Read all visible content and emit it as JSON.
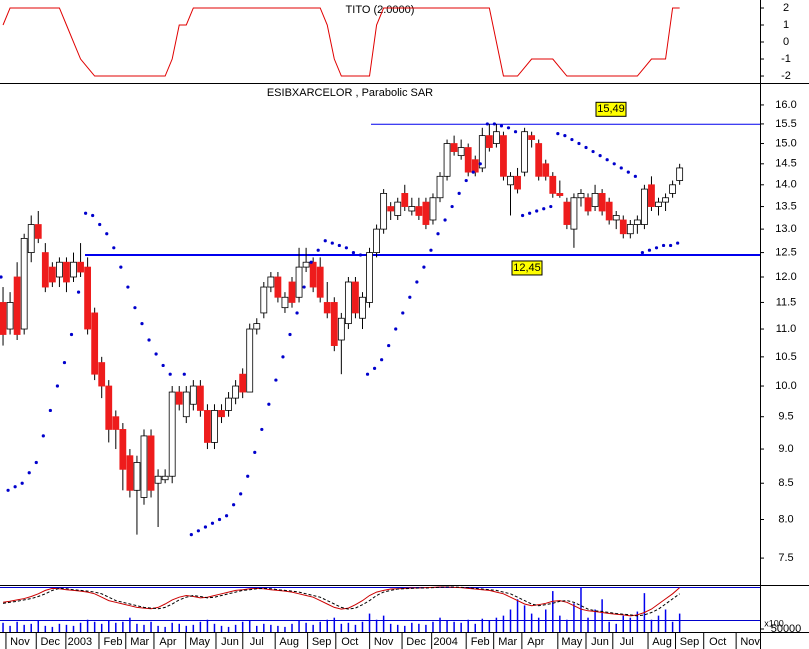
{
  "chart_data": [
    {
      "type": "step-line",
      "title": "TITO (2.0000)",
      "color": "#e00000",
      "values": [
        1,
        2,
        2,
        2,
        2,
        2,
        2,
        2,
        2,
        1,
        0,
        -1,
        -1.5,
        -2,
        -2,
        -2,
        -2,
        -2,
        -2,
        -2,
        -2,
        -2,
        -2,
        -2,
        -1,
        1,
        1,
        2,
        2,
        2,
        2,
        2,
        2,
        2,
        2,
        2,
        2,
        2,
        2,
        2,
        2,
        2,
        2,
        2,
        2,
        2,
        1,
        -1,
        -2,
        -2,
        -2,
        -2,
        -2,
        1,
        2,
        2,
        2,
        2,
        2,
        2,
        2,
        2,
        2,
        2,
        2,
        2,
        2,
        2,
        2,
        2,
        0,
        -2,
        -2,
        -2,
        -1.5,
        -1,
        -1,
        -1,
        -1,
        -1.5,
        -2,
        -2,
        -2,
        -2,
        -2,
        -2,
        -2,
        -2,
        -2,
        -2,
        -2,
        -1.5,
        -1,
        -1,
        -1,
        2,
        2
      ],
      "xlim": [
        -0.43,
        107.4
      ],
      "ylim": [
        -2.41,
        2.47
      ],
      "yticks": [
        2,
        1,
        0,
        -1,
        -2
      ]
    },
    {
      "type": "candlestick",
      "title": "ESIBXARCELOR , Parabolic SAR",
      "log_scale": true,
      "up_color": "#ffffff",
      "down_color": "#ee1c1c",
      "sar_color": "#0000cc",
      "level_color": "#0000ee",
      "ohlc": [
        [
          11.5,
          11.8,
          10.7,
          10.9
        ],
        [
          11.0,
          11.7,
          10.9,
          11.5
        ],
        [
          12.0,
          12.3,
          10.8,
          10.9
        ],
        [
          11.0,
          12.9,
          10.9,
          12.8
        ],
        [
          12.5,
          13.3,
          12.3,
          13.1
        ],
        [
          13.1,
          13.4,
          12.7,
          12.8
        ],
        [
          12.5,
          12.7,
          11.7,
          11.8
        ],
        [
          12.2,
          12.3,
          11.8,
          11.9
        ],
        [
          12.0,
          12.4,
          11.8,
          12.3
        ],
        [
          12.3,
          12.4,
          11.7,
          11.9
        ],
        [
          12.0,
          12.5,
          11.9,
          12.3
        ],
        [
          12.3,
          12.7,
          12.0,
          12.1
        ],
        [
          12.2,
          12.4,
          10.9,
          11.0
        ],
        [
          11.3,
          11.4,
          10.1,
          10.2
        ],
        [
          10.4,
          10.5,
          9.8,
          10.0
        ],
        [
          10.0,
          10.1,
          9.1,
          9.3
        ],
        [
          9.5,
          9.6,
          9.0,
          9.3
        ],
        [
          9.3,
          9.4,
          8.4,
          8.7
        ],
        [
          8.9,
          9.0,
          8.3,
          8.4
        ],
        [
          8.4,
          8.9,
          7.8,
          8.8
        ],
        [
          8.3,
          9.3,
          8.2,
          9.2
        ],
        [
          9.2,
          9.3,
          8.3,
          8.4
        ],
        [
          8.5,
          8.7,
          7.9,
          8.6
        ],
        [
          8.55,
          8.7,
          8.5,
          8.6
        ],
        [
          8.6,
          10.0,
          8.5,
          9.9
        ],
        [
          9.9,
          10.0,
          9.6,
          9.7
        ],
        [
          9.5,
          10.0,
          9.4,
          9.9
        ],
        [
          9.7,
          10.1,
          9.6,
          10.0
        ],
        [
          10.0,
          10.1,
          9.5,
          9.6
        ],
        [
          9.6,
          9.7,
          9.0,
          9.1
        ],
        [
          9.1,
          9.7,
          9.0,
          9.6
        ],
        [
          9.6,
          9.7,
          9.4,
          9.5
        ],
        [
          9.6,
          9.9,
          9.5,
          9.8
        ],
        [
          9.8,
          10.1,
          9.7,
          10.0
        ],
        [
          10.2,
          10.3,
          9.8,
          9.9
        ],
        [
          9.9,
          11.1,
          9.9,
          11.0
        ],
        [
          11.0,
          11.2,
          10.9,
          11.1
        ],
        [
          11.3,
          11.9,
          11.2,
          11.8
        ],
        [
          11.8,
          12.1,
          11.7,
          12.0
        ],
        [
          12.0,
          12.1,
          11.5,
          11.6
        ],
        [
          11.4,
          11.7,
          11.3,
          11.6
        ],
        [
          11.9,
          12.0,
          11.4,
          11.5
        ],
        [
          11.6,
          12.6,
          11.5,
          12.2
        ],
        [
          12.2,
          12.6,
          12.1,
          12.3
        ],
        [
          12.3,
          12.4,
          11.7,
          11.8
        ],
        [
          12.2,
          12.4,
          11.5,
          11.6
        ],
        [
          11.5,
          11.9,
          11.2,
          11.3
        ],
        [
          11.5,
          11.6,
          10.6,
          10.7
        ],
        [
          10.8,
          11.3,
          10.2,
          11.2
        ],
        [
          11.1,
          12.0,
          11.0,
          11.9
        ],
        [
          11.9,
          12.0,
          11.2,
          11.3
        ],
        [
          11.2,
          11.7,
          11.0,
          11.6
        ],
        [
          11.5,
          12.6,
          11.4,
          12.5
        ],
        [
          12.5,
          13.1,
          12.4,
          13.0
        ],
        [
          13.0,
          13.9,
          12.9,
          13.8
        ],
        [
          13.5,
          13.6,
          13.2,
          13.4
        ],
        [
          13.3,
          13.7,
          13.2,
          13.6
        ],
        [
          13.8,
          14.0,
          13.4,
          13.5
        ],
        [
          13.4,
          13.7,
          13.3,
          13.5
        ],
        [
          13.5,
          13.7,
          13.2,
          13.3
        ],
        [
          13.6,
          13.7,
          13.0,
          13.1
        ],
        [
          13.2,
          13.8,
          13.1,
          13.7
        ],
        [
          13.7,
          14.3,
          13.6,
          14.2
        ],
        [
          14.2,
          15.1,
          14.1,
          15.0
        ],
        [
          15.0,
          15.2,
          14.7,
          14.8
        ],
        [
          14.7,
          15.1,
          14.6,
          14.9
        ],
        [
          14.9,
          15.0,
          14.2,
          14.3
        ],
        [
          14.6,
          14.7,
          14.2,
          14.3
        ],
        [
          14.4,
          15.4,
          14.3,
          15.2
        ],
        [
          15.2,
          15.5,
          14.8,
          14.9
        ],
        [
          15.0,
          15.5,
          14.9,
          15.3
        ],
        [
          15.2,
          15.3,
          14.1,
          14.2
        ],
        [
          14.0,
          14.3,
          13.3,
          14.2
        ],
        [
          14.2,
          14.4,
          13.8,
          13.9
        ],
        [
          14.3,
          15.4,
          14.2,
          15.3
        ],
        [
          15.2,
          15.3,
          14.9,
          15.1
        ],
        [
          15.0,
          15.1,
          14.1,
          14.2
        ],
        [
          14.5,
          14.6,
          14.1,
          14.2
        ],
        [
          14.2,
          14.3,
          13.7,
          13.8
        ],
        [
          13.8,
          14.1,
          13.7,
          13.75
        ],
        [
          13.6,
          13.7,
          13.0,
          13.1
        ],
        [
          13.0,
          13.8,
          12.6,
          13.7
        ],
        [
          13.7,
          13.9,
          13.5,
          13.8
        ],
        [
          13.7,
          13.8,
          13.3,
          13.4
        ],
        [
          13.5,
          14.0,
          13.4,
          13.8
        ],
        [
          13.8,
          13.9,
          13.3,
          13.4
        ],
        [
          13.6,
          13.7,
          13.1,
          13.2
        ],
        [
          13.2,
          13.4,
          13.0,
          13.3
        ],
        [
          13.2,
          13.3,
          12.8,
          12.9
        ],
        [
          12.9,
          13.2,
          12.8,
          13.1
        ],
        [
          13.1,
          13.3,
          12.9,
          13.2
        ],
        [
          13.1,
          14.0,
          13.0,
          13.9
        ],
        [
          14.0,
          14.2,
          13.4,
          13.5
        ],
        [
          13.5,
          13.7,
          13.3,
          13.6
        ],
        [
          13.6,
          13.8,
          13.4,
          13.7
        ],
        [
          13.8,
          14.1,
          13.7,
          14.0
        ],
        [
          14.1,
          14.5,
          14.0,
          14.4
        ]
      ],
      "sar": [
        12.0,
        8.4,
        8.45,
        8.5,
        8.65,
        8.8,
        9.2,
        9.6,
        10.0,
        10.4,
        10.9,
        11.7,
        13.35,
        13.3,
        13.1,
        12.9,
        12.6,
        12.2,
        11.8,
        11.4,
        11.1,
        10.8,
        10.55,
        10.35,
        10.2,
        null,
        10.2,
        7.8,
        7.85,
        7.9,
        7.95,
        8.0,
        8.05,
        8.2,
        8.35,
        8.6,
        8.95,
        9.3,
        9.7,
        10.1,
        10.5,
        10.9,
        11.3,
        11.8,
        12.3,
        12.55,
        12.75,
        12.7,
        12.65,
        12.6,
        12.5,
        12.45,
        10.2,
        10.3,
        10.45,
        10.7,
        11.0,
        11.3,
        11.6,
        11.9,
        12.2,
        12.55,
        12.9,
        13.2,
        13.5,
        13.8,
        14.1,
        14.3,
        14.5,
        15.5,
        15.5,
        15.45,
        15.4,
        15.3,
        13.3,
        13.35,
        13.4,
        13.45,
        13.5,
        15.25,
        15.2,
        15.1,
        15.0,
        14.9,
        14.8,
        14.7,
        14.6,
        14.5,
        14.4,
        14.3,
        14.2,
        12.5,
        12.55,
        12.6,
        12.65,
        12.65,
        12.7
      ],
      "levels": [
        {
          "value": 15.49,
          "label": "15,49"
        },
        {
          "value": 12.45,
          "label": "12,45"
        }
      ],
      "xlim": [
        -0.43,
        107.4
      ],
      "ylim": [
        7.17,
        16.57
      ],
      "yticks": [
        {
          "value": 16,
          "label": "16.0"
        },
        15.5,
        {
          "value": 15,
          "label": "15.0"
        },
        14.5,
        {
          "value": 14,
          "label": "14.0"
        },
        13.5,
        {
          "value": 13,
          "label": "13.0"
        },
        12.5,
        {
          "value": 12,
          "label": "12.0"
        },
        11.5,
        {
          "value": 11,
          "label": "11.0"
        },
        10.5,
        {
          "value": 10,
          "label": "10.0"
        },
        9.5,
        {
          "value": 9,
          "label": "9.0"
        },
        8.5,
        {
          "value": 8,
          "label": "8.0"
        },
        7.5
      ],
      "xticks": [
        {
          "value": 2.4,
          "label": "Nov"
        },
        {
          "value": 6.7,
          "label": "Dec"
        },
        {
          "value": 10.9,
          "label": "2003"
        },
        {
          "value": 15.6,
          "label": "Feb"
        },
        {
          "value": 19.4,
          "label": "Mar"
        },
        {
          "value": 23.4,
          "label": "Apr"
        },
        {
          "value": 27.9,
          "label": "May"
        },
        {
          "value": 32.2,
          "label": "Jun"
        },
        {
          "value": 36,
          "label": "Jul"
        },
        {
          "value": 40.6,
          "label": "Aug"
        },
        {
          "value": 45.2,
          "label": "Sep"
        },
        {
          "value": 49.2,
          "label": "Oct"
        },
        {
          "value": 54,
          "label": "Nov"
        },
        {
          "value": 58.6,
          "label": "Dec"
        },
        {
          "value": 62.8,
          "label": "2004"
        },
        {
          "value": 67.7,
          "label": "Feb"
        },
        {
          "value": 71.6,
          "label": "Mar"
        },
        {
          "value": 75.6,
          "label": "Apr"
        },
        {
          "value": 80.7,
          "label": "May"
        },
        {
          "value": 84.7,
          "label": "Jun"
        },
        {
          "value": 88.5,
          "label": "Jul"
        },
        {
          "value": 93.5,
          "label": "Aug"
        },
        {
          "value": 97.4,
          "label": "Sep"
        },
        {
          "value": 101.4,
          "label": "Oct"
        },
        {
          "value": 106,
          "label": "Nov"
        }
      ]
    },
    {
      "type": "volume",
      "color": "#0000ee",
      "unit_label": "x100",
      "values": [
        85000,
        70000,
        90000,
        75000,
        80000,
        95000,
        70000,
        65000,
        80000,
        75000,
        70000,
        85000,
        100000,
        90000,
        80000,
        95000,
        85000,
        90000,
        110000,
        80000,
        75000,
        90000,
        70000,
        65000,
        85000,
        80000,
        70000,
        75000,
        90000,
        100000,
        80000,
        70000,
        65000,
        75000,
        90000,
        95000,
        70000,
        80000,
        75000,
        70000,
        65000,
        80000,
        95000,
        85000,
        75000,
        90000,
        100000,
        110000,
        80000,
        85000,
        75000,
        90000,
        130000,
        100000,
        120000,
        80000,
        75000,
        70000,
        85000,
        80000,
        75000,
        90000,
        110000,
        95000,
        90000,
        85000,
        100000,
        80000,
        105000,
        95000,
        110000,
        120000,
        150000,
        200000,
        170000,
        130000,
        110000,
        150000,
        240000,
        120000,
        100000,
        180000,
        260000,
        110000,
        150000,
        200000,
        90000,
        80000,
        120000,
        110000,
        140000,
        230000,
        100000,
        120000,
        150000,
        90000,
        130000
      ],
      "xlim": [
        -0.43,
        107.4
      ],
      "ylim": [
        40000,
        260000
      ],
      "yticks": [
        50000
      ],
      "oscillator": {
        "ylim": [
          0,
          100
        ],
        "series": [
          {
            "color": "#cc0000",
            "dashed": false,
            "values": [
              55,
              58,
              62,
              66,
              72,
              80,
              90,
              96,
              95,
              92,
              90,
              88,
              85,
              80,
              70,
              60,
              55,
              50,
              45,
              40,
              38,
              36,
              40,
              50,
              62,
              70,
              75,
              72,
              68,
              70,
              75,
              80,
              85,
              90,
              92,
              95,
              96,
              95,
              92,
              90,
              88,
              85,
              80,
              75,
              70,
              60,
              50,
              40,
              35,
              38,
              48,
              60,
              75,
              85,
              90,
              94,
              95,
              96,
              97,
              97,
              98,
              99,
              100,
              100,
              99,
              98,
              96,
              94,
              92,
              90,
              85,
              80,
              70,
              60,
              50,
              45,
              48,
              52,
              58,
              60,
              55,
              45,
              35,
              30,
              28,
              25,
              22,
              20,
              18,
              15,
              18,
              25,
              35,
              50,
              65,
              80,
              98
            ]
          },
          {
            "color": "#000000",
            "dashed": true,
            "values": [
              52,
              55,
              58,
              62,
              66,
              72,
              80,
              90,
              96,
              95,
              92,
              90,
              88,
              85,
              80,
              70,
              60,
              55,
              50,
              45,
              40,
              38,
              36,
              40,
              50,
              62,
              70,
              75,
              72,
              68,
              70,
              75,
              80,
              85,
              90,
              92,
              95,
              96,
              95,
              92,
              90,
              88,
              85,
              80,
              75,
              70,
              60,
              50,
              40,
              35,
              38,
              48,
              60,
              75,
              85,
              90,
              94,
              95,
              96,
              97,
              97,
              98,
              99,
              100,
              100,
              99,
              98,
              96,
              94,
              92,
              90,
              85,
              80,
              70,
              60,
              50,
              45,
              48,
              52,
              58,
              60,
              55,
              45,
              35,
              30,
              28,
              25,
              22,
              20,
              18,
              15,
              18,
              25,
              35,
              50,
              65,
              80
            ]
          }
        ]
      }
    }
  ]
}
